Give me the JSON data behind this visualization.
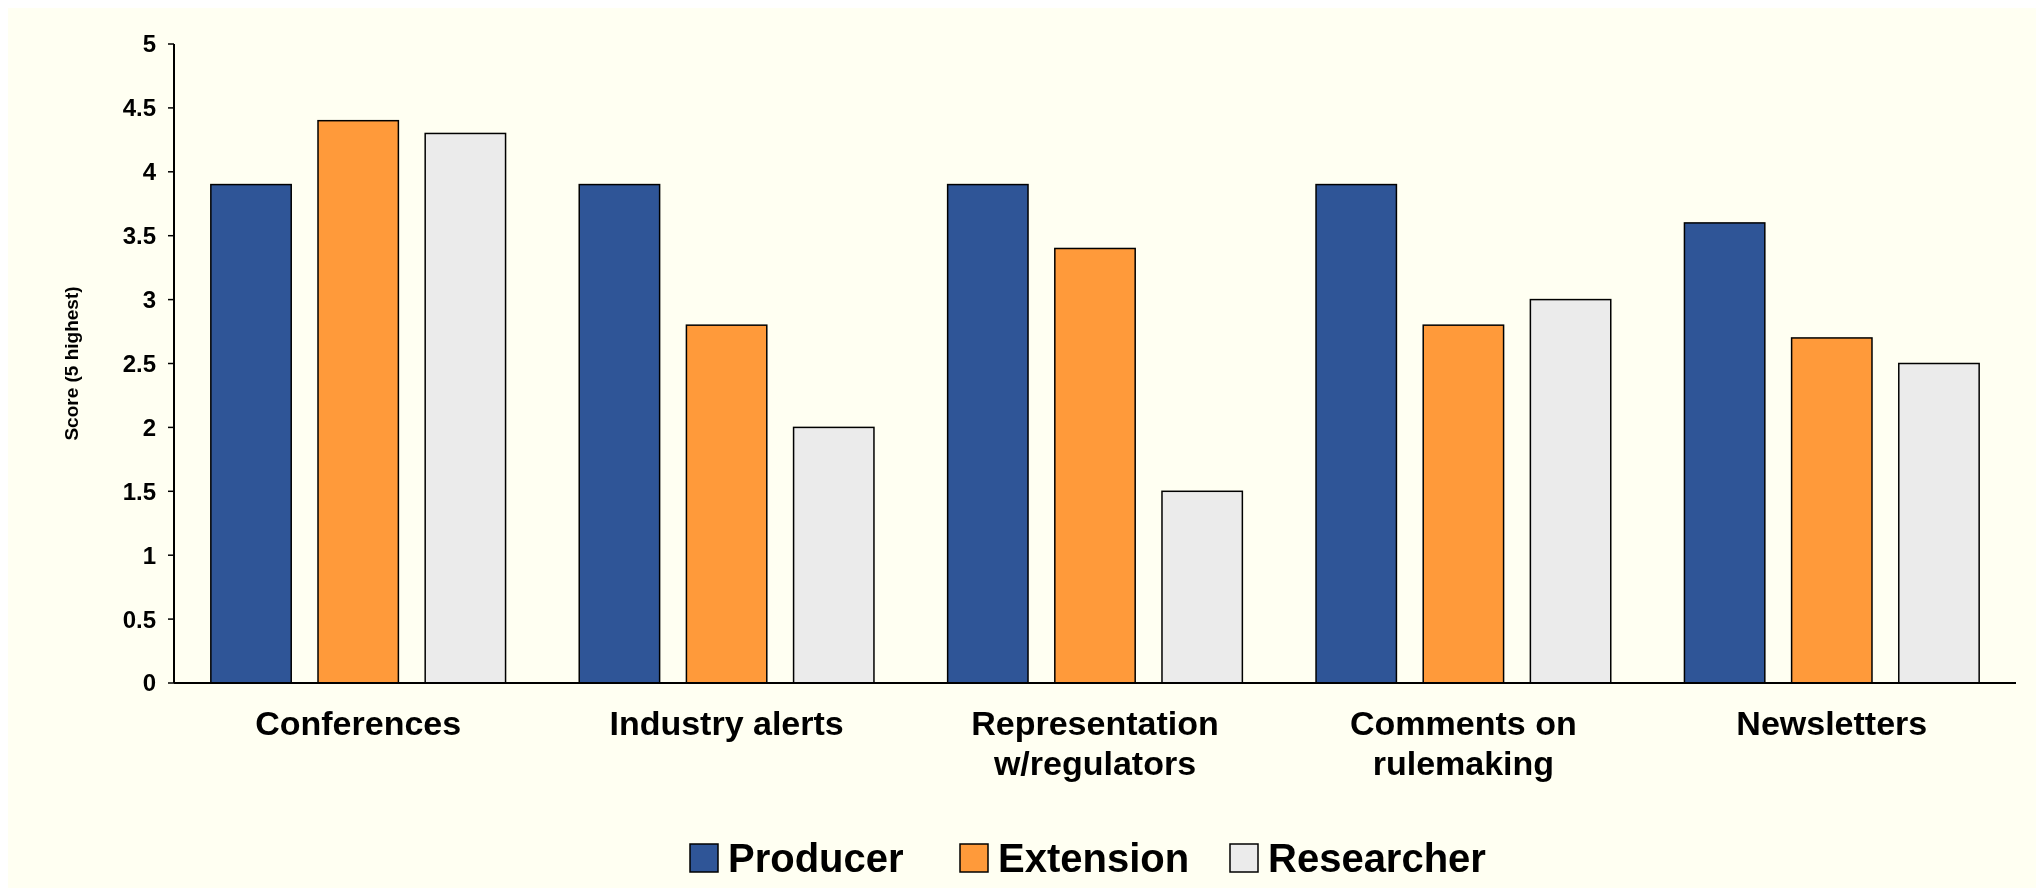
{
  "chart_data": {
    "type": "bar",
    "ylabel": "Score (5 highest)",
    "categories": [
      "Conferences",
      "Industry alerts",
      "Representation w/regulators",
      "Comments on rulemaking",
      "Newsletters"
    ],
    "series": [
      {
        "name": "Producer",
        "color": "#2f5597",
        "values": [
          3.9,
          3.9,
          3.9,
          3.9,
          3.6
        ]
      },
      {
        "name": "Extension",
        "color": "#ff9a3a",
        "values": [
          4.4,
          2.8,
          3.4,
          2.8,
          2.7
        ]
      },
      {
        "name": "Researcher",
        "color": "#ebebeb",
        "values": [
          4.3,
          2.0,
          1.5,
          3.0,
          2.5
        ]
      }
    ],
    "ylim": [
      0,
      5
    ],
    "yticks": [
      0,
      0.5,
      1,
      1.5,
      2,
      2.5,
      3,
      3.5,
      4,
      4.5,
      5
    ],
    "grid": false,
    "legend": "bottom"
  }
}
